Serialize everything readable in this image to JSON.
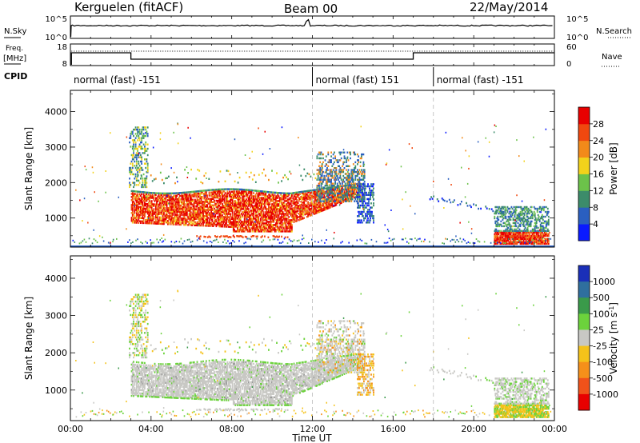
{
  "header": {
    "station": "Kerguelen (fitACF)",
    "beam": "Beam 00",
    "date": "22/May/2014"
  },
  "top_panels": {
    "nsky_label": "N.Sky",
    "nsky_ticks": [
      "10^5",
      "10^0"
    ],
    "nsearch_label": "N.Search",
    "nsearch_ticks": [
      "10^5",
      "10^0"
    ],
    "freq_label_1": "Freq.",
    "freq_label_2": "[MHz]",
    "freq_ticks": [
      "18",
      "8"
    ],
    "nave_label": "Nave",
    "nave_ticks": [
      "60",
      "0"
    ],
    "cpid_label": "CPID",
    "cpid_segments": [
      {
        "start": 0,
        "end": 12,
        "label": "normal (fast) -151"
      },
      {
        "start": 12,
        "end": 18,
        "label": "normal (fast) 151"
      },
      {
        "start": 18,
        "end": 24,
        "label": "normal (fast) -151"
      }
    ]
  },
  "chart_data": [
    {
      "type": "heatmap",
      "quantity": "Power",
      "ylabel": "Slant Range [km]",
      "xlim": [
        0,
        24
      ],
      "ylim": [
        180,
        4600
      ],
      "yticks": [
        "1000",
        "2000",
        "3000",
        "4000"
      ],
      "colorbar_label": "Power [dB]",
      "colorbar_ticks": [
        "4",
        "8",
        "12",
        "16",
        "20",
        "24",
        "28"
      ],
      "colorbar_colors": [
        "#0a1aff",
        "#2a5fc0",
        "#3c8c6a",
        "#6cc24a",
        "#f2d21b",
        "#f28a1a",
        "#f0480f",
        "#e80000"
      ]
    },
    {
      "type": "heatmap",
      "quantity": "Velocity",
      "ylabel": "Slant Range [km]",
      "xlabel": "Time UT",
      "xlim": [
        0,
        24
      ],
      "ylim": [
        180,
        4600
      ],
      "yticks": [
        "1000",
        "2000",
        "3000",
        "4000"
      ],
      "xticks": [
        "00:00",
        "04:00",
        "08:00",
        "12:00",
        "16:00",
        "20:00",
        "00:00"
      ],
      "colorbar_label": "Velocity [m s-1]",
      "colorbar_ticks": [
        "1000",
        "500",
        "100",
        "25",
        "-25",
        "-100",
        "-500",
        "-1000"
      ],
      "colorbar_colors": [
        "#1a2fb8",
        "#2f6f9e",
        "#3a9a4a",
        "#6cd23c",
        "#c8c8c4",
        "#f4c21a",
        "#f5901a",
        "#f0521a",
        "#e80000"
      ],
      "ground_scatter_color": "#bebebe"
    }
  ]
}
